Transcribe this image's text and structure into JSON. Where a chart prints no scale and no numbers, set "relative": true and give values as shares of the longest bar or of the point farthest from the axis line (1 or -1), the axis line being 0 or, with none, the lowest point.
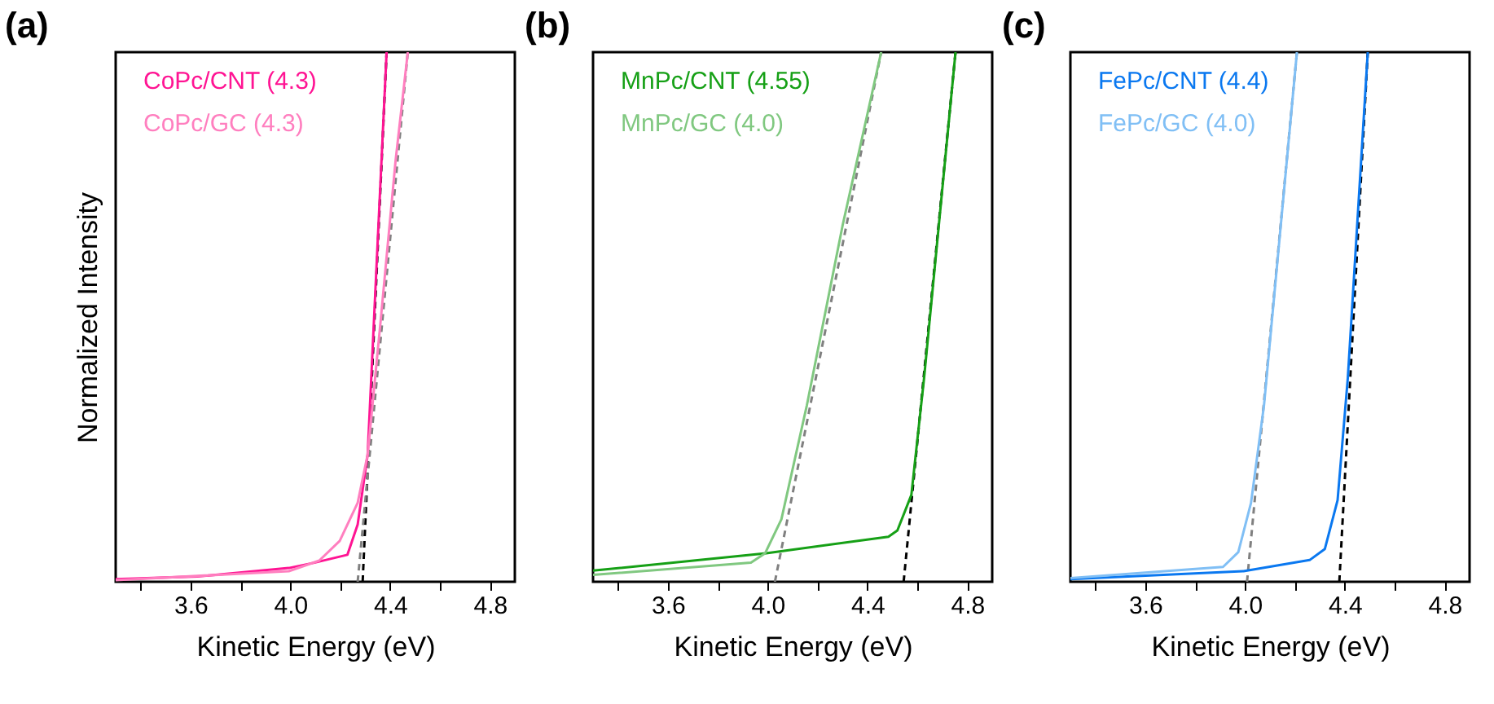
{
  "chart_data": [
    {
      "type": "line",
      "title": "(a)",
      "xlabel": "Kinetic Energy (eV)",
      "ylabel": "Normalized Intensity",
      "relative": true,
      "legend": "top left",
      "grid": false,
      "xlim": [
        3.3,
        4.9
      ],
      "xticks": [
        {
          "value": 3.4,
          "label": null
        },
        3.6,
        {
          "value": 3.8,
          "label": null
        },
        {
          "value": 4.0,
          "label": "4.0"
        },
        {
          "value": 4.2,
          "label": null
        },
        4.4,
        {
          "value": 4.6,
          "label": null
        },
        4.8
      ],
      "series": [
        {
          "name": "CoPc/CNT (4.3)",
          "color": "#ff1493",
          "x": [
            3.3,
            3.627,
            3.994,
            4.096,
            4.229,
            4.27,
            4.31,
            4.386
          ],
          "values": [
            0.005,
            0.01,
            0.026,
            0.036,
            0.051,
            0.108,
            0.24,
            1.0
          ]
        },
        {
          "name": "CoPc/GC (4.3)",
          "color": "#ff7fbf",
          "x": [
            3.3,
            3.994,
            4.116,
            4.198,
            4.27,
            4.31,
            4.361,
            4.422,
            4.471
          ],
          "values": [
            0.003,
            0.02,
            0.04,
            0.077,
            0.149,
            0.24,
            0.487,
            0.795,
            1.0
          ]
        },
        {
          "type": "line",
          "line_style": "dashed",
          "color": "#000000",
          "x": [
            4.29,
            4.386
          ],
          "values": [
            0,
            1.0
          ]
        },
        {
          "type": "line",
          "line_style": "dashed",
          "color": "#808080",
          "x": [
            4.27,
            4.471
          ],
          "values": [
            0,
            1.0
          ]
        }
      ]
    },
    {
      "type": "line",
      "title": "(b)",
      "xlabel": "Kinetic Energy (eV)",
      "relative": true,
      "legend": "top left",
      "grid": false,
      "xlim": [
        3.3,
        4.9
      ],
      "xticks": [
        {
          "value": 3.4,
          "label": null
        },
        3.6,
        {
          "value": 3.8,
          "label": null
        },
        {
          "value": 4.0,
          "label": "4.0"
        },
        {
          "value": 4.2,
          "label": null
        },
        4.4,
        {
          "value": 4.6,
          "label": null
        },
        4.8
      ],
      "series": [
        {
          "name": "MnPc/CNT (4.55)",
          "color": "#16a016",
          "x": [
            3.3,
            3.994,
            4.484,
            4.52,
            4.576,
            4.627,
            4.753
          ],
          "values": [
            0.021,
            0.054,
            0.085,
            0.097,
            0.164,
            0.385,
            1.0
          ]
        },
        {
          "name": "MnPc/GC (4.0)",
          "color": "#80c880",
          "x": [
            3.3,
            3.933,
            3.99,
            4.055,
            4.157,
            4.3,
            4.455
          ],
          "values": [
            0.013,
            0.036,
            0.054,
            0.118,
            0.333,
            0.672,
            1.0
          ]
        },
        {
          "type": "line",
          "line_style": "dashed",
          "color": "#000000",
          "x": [
            4.545,
            4.753
          ],
          "values": [
            0,
            1.0
          ]
        },
        {
          "type": "line",
          "line_style": "dashed",
          "color": "#808080",
          "x": [
            4.029,
            4.455
          ],
          "values": [
            0,
            1.0
          ]
        }
      ]
    },
    {
      "type": "line",
      "title": "(c)",
      "xlabel": "Kinetic Energy (eV)",
      "relative": true,
      "legend": "top left",
      "grid": false,
      "xlim": [
        3.3,
        4.9
      ],
      "xticks": [
        {
          "value": 3.4,
          "label": null
        },
        3.6,
        {
          "value": 3.8,
          "label": null
        },
        {
          "value": 4.0,
          "label": "4.0"
        },
        {
          "value": 4.2,
          "label": null
        },
        4.4,
        {
          "value": 4.6,
          "label": null
        },
        4.8
      ],
      "series": [
        {
          "name": "FePc/CNT (4.4)",
          "color": "#0a78f0",
          "x": [
            3.3,
            3.994,
            4.259,
            4.32,
            4.371,
            4.412,
            4.492
          ],
          "values": [
            0.005,
            0.02,
            0.041,
            0.062,
            0.154,
            0.385,
            1.0
          ]
        },
        {
          "name": "FePc/GC (4.0)",
          "color": "#80bff5",
          "x": [
            3.3,
            3.912,
            3.973,
            4.024,
            4.076,
            4.208
          ],
          "values": [
            0.007,
            0.028,
            0.056,
            0.149,
            0.333,
            1.0
          ]
        },
        {
          "type": "line",
          "line_style": "dashed",
          "color": "#000000",
          "x": [
            4.378,
            4.492
          ],
          "values": [
            0,
            1.0
          ]
        },
        {
          "type": "line",
          "line_style": "dashed",
          "color": "#808080",
          "x": [
            4.008,
            4.208
          ],
          "values": [
            0,
            1.0
          ]
        }
      ]
    }
  ]
}
